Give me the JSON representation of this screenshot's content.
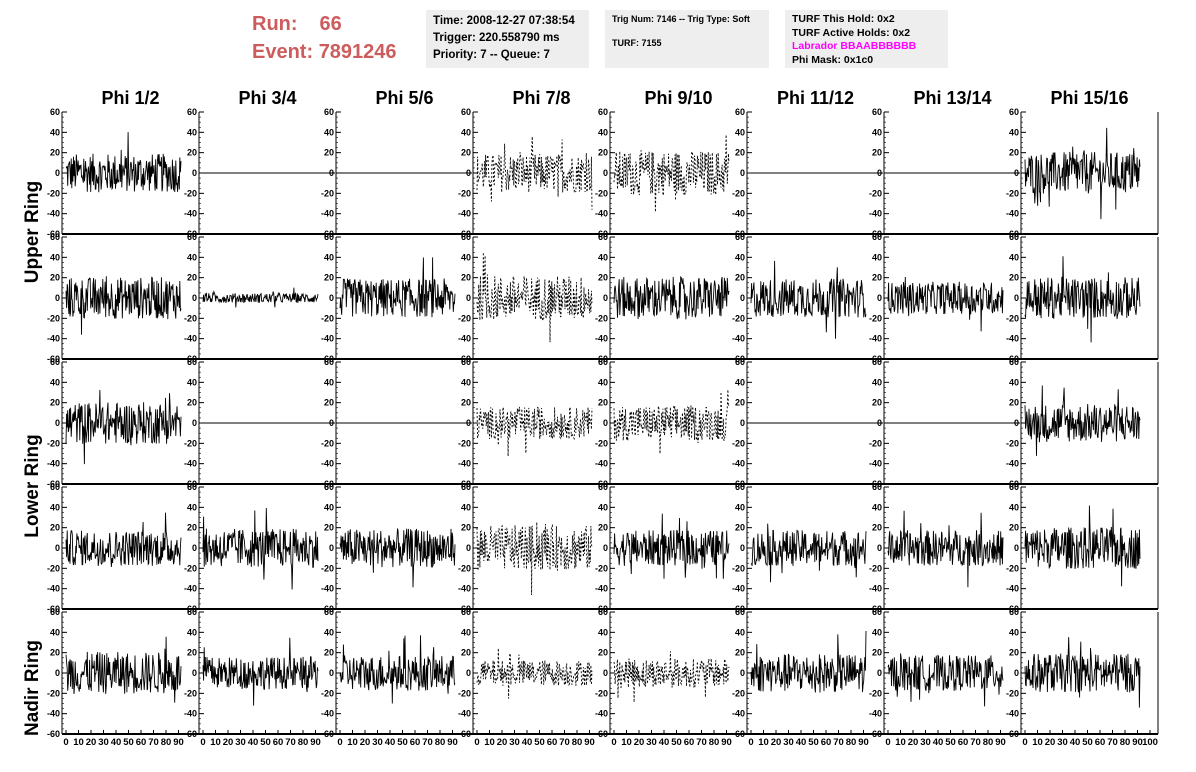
{
  "header": {
    "run_label": "Run:",
    "run_value": "66",
    "event_label": "Event:",
    "event_value": "7891246"
  },
  "info1": {
    "time": "Time: 2008-12-27 07:38:54",
    "trigger": "Trigger: 220.558790 ms",
    "priority": "Priority: 7 -- Queue: 7"
  },
  "info2": {
    "trig": "Trig Num: 7146 -- Trig Type: Soft",
    "turf": "TURF: 7155"
  },
  "info3": {
    "hold": "TURF This Hold: 0x2",
    "active": "TURF Active Holds: 0x2",
    "labrador": "Labrador BBAABBBBBB",
    "mask": "Phi Mask: 0x1c0"
  },
  "colors": {
    "run_text": "#cd5c5c",
    "labrador_text": "#ff00ff",
    "info_bg": "#eeeeee"
  },
  "chart_data": {
    "type": "line",
    "columns": [
      "Phi 1/2",
      "Phi 3/4",
      "Phi 5/6",
      "Phi 7/8",
      "Phi 9/10",
      "Phi 11/12",
      "Phi 13/14",
      "Phi 15/16"
    ],
    "ring_labels": [
      "Upper Ring",
      "Lower Ring",
      "Nadir Ring"
    ],
    "ylim": [
      -60,
      60
    ],
    "yticks": [
      -60,
      -40,
      -20,
      0,
      20,
      40,
      60
    ],
    "xlim": [
      0,
      100
    ],
    "xticks": [
      0,
      10,
      20,
      30,
      40,
      50,
      60,
      70,
      80,
      90,
      100
    ],
    "panels": [
      [
        "noise 12",
        "flat",
        "flat",
        "dashed 12",
        "dashed 14",
        "flat",
        "flat",
        "noise 13"
      ],
      [
        "noise 13",
        "noise 3",
        "noise 12",
        "dashed 14",
        "noise 13",
        "noise 12",
        "noise 10",
        "noise 13"
      ],
      [
        "noise 13",
        "flat",
        "flat",
        "dashed 10",
        "dashed 11",
        "flat",
        "flat",
        "noise 12"
      ],
      [
        "noise 11",
        "noise 12",
        "noise 12",
        "dashed 14",
        "noise 11",
        "noise 11",
        "noise 11",
        "noise 13"
      ],
      [
        "noise 13",
        "noise 10",
        "noise 11",
        "dashed 8",
        "dashed 9",
        "noise 12",
        "noise 11",
        "noise 12"
      ]
    ]
  }
}
